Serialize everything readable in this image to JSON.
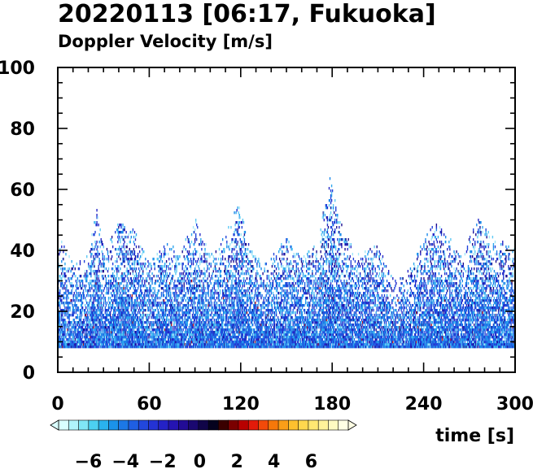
{
  "chart_data": {
    "type": "heatmap",
    "title": "20220113 [06:17, Fukuoka]",
    "subtitle": "Doppler Velocity [m/s]",
    "xlabel": "time [s]",
    "ylabel": "",
    "xlim": [
      0,
      300
    ],
    "ylim": [
      0,
      100
    ],
    "x_ticks": [
      0,
      60,
      120,
      180,
      240,
      300
    ],
    "y_ticks": [
      0,
      20,
      40,
      60,
      80,
      100
    ],
    "x_minor_step": 10,
    "y_minor_step": 5,
    "grid": false,
    "min_height": 8,
    "height_profile": {
      "t": [
        0,
        10,
        20,
        25,
        30,
        40,
        50,
        60,
        70,
        80,
        90,
        100,
        110,
        118,
        125,
        135,
        150,
        160,
        170,
        178,
        185,
        195,
        210,
        220,
        230,
        245,
        255,
        265,
        275,
        285,
        300
      ],
      "top": [
        45,
        35,
        38,
        55,
        40,
        50,
        47,
        36,
        42,
        40,
        50,
        38,
        45,
        58,
        42,
        35,
        44,
        38,
        42,
        64,
        50,
        38,
        42,
        30,
        33,
        50,
        45,
        38,
        50,
        45,
        40
      ]
    },
    "colorbar": {
      "ticks": [
        -6,
        -4,
        -2,
        0,
        2,
        4,
        6
      ],
      "range": [
        -7.6,
        8.0
      ],
      "colors": [
        "#d9ffff",
        "#b0f4fb",
        "#80e6f6",
        "#4cd0f2",
        "#2ab2ee",
        "#1b93ea",
        "#1c78e6",
        "#1f5fe3",
        "#2247dd",
        "#2433d4",
        "#2422c6",
        "#2514b2",
        "#220c96",
        "#1a0870",
        "#100548",
        "#05021e",
        "#3a0000",
        "#7a0000",
        "#b80000",
        "#e31a0a",
        "#f24a0a",
        "#f7780a",
        "#fb9e18",
        "#fdc02e",
        "#ffd84e",
        "#ffe872",
        "#fff39a",
        "#fffac2",
        "#ffffe4"
      ],
      "extend": "both"
    }
  }
}
